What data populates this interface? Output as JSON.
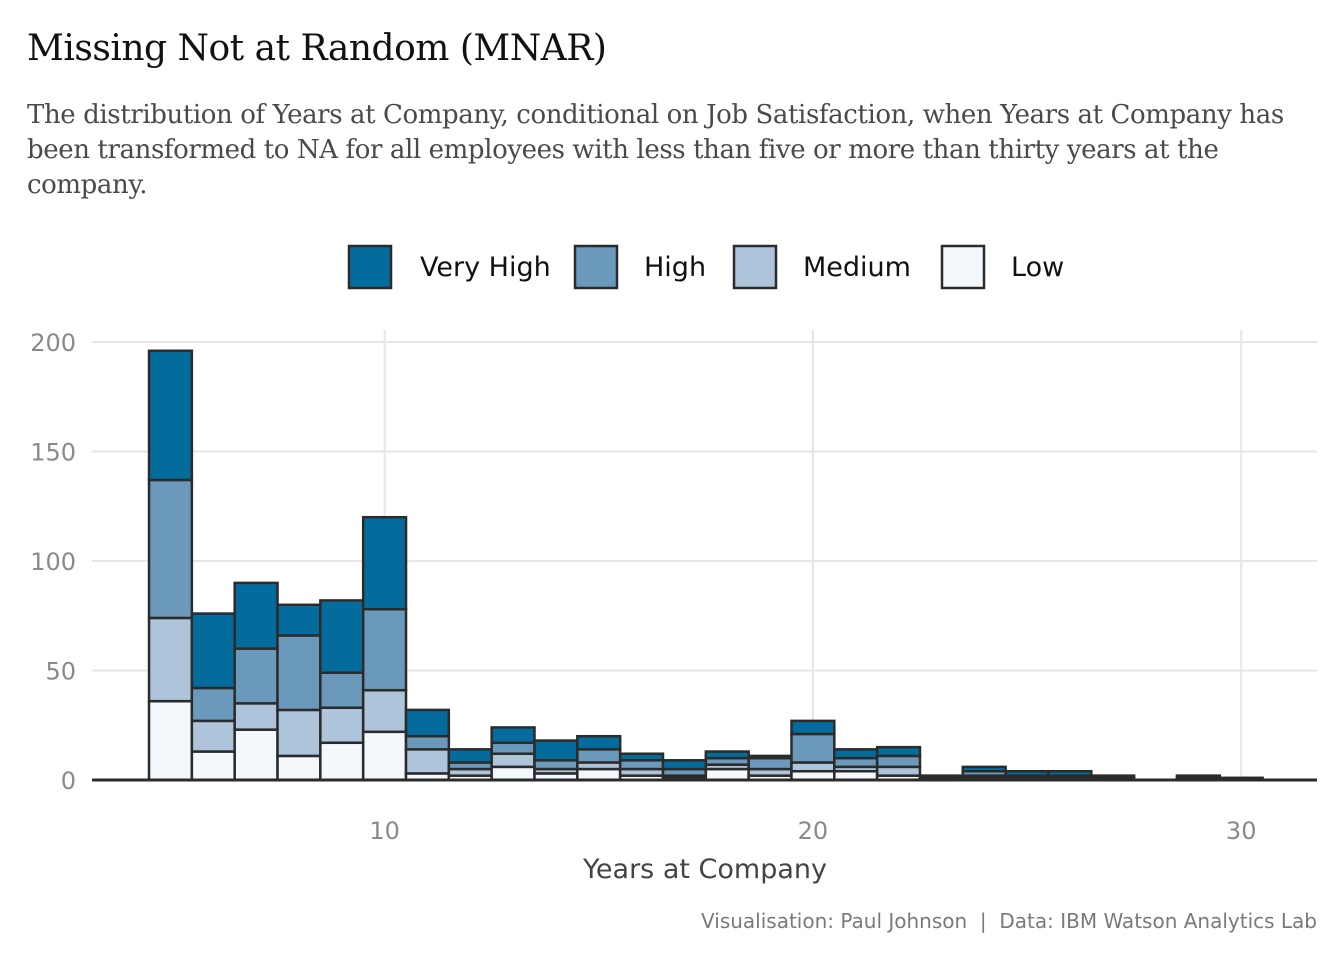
{
  "chart_data": {
    "type": "bar",
    "title": "Missing Not at Random (MNAR)",
    "subtitle": "The distribution of Years at Company, conditional on Job Satisfaction, when Years at Company has been transformed to NA for all employees with less than five or more than thirty years at the company.",
    "xlabel": "Years at Company",
    "ylabel": "",
    "caption": "Visualisation: Paul Johnson  |  Data: IBM Watson Analytics Lab",
    "xlim": [
      3.4,
      32.0
    ],
    "ylim": [
      0,
      200
    ],
    "x_ticks": [
      10,
      20,
      30
    ],
    "y_ticks": [
      0,
      50,
      100,
      150,
      200
    ],
    "bin_width": 1.0,
    "bin_centers": [
      5.0,
      6.0,
      7.0,
      8.0,
      9.0,
      10.0,
      11.0,
      12.0,
      13.0,
      14.0,
      15.0,
      16.0,
      17.0,
      18.0,
      19.0,
      20.0,
      21.0,
      22.0,
      23.0,
      24.0,
      25.0,
      26.0,
      27.0,
      28.0,
      29.0,
      30.0
    ],
    "stack_order": "Very High on top, Low at bottom",
    "grid": true,
    "legend_position": "top",
    "series": [
      {
        "name": "Low",
        "color": "#f3f8fd",
        "values": [
          36,
          13,
          23,
          11,
          17,
          22,
          3,
          2,
          6,
          3,
          5,
          2,
          1,
          5,
          2,
          4,
          4,
          2,
          0,
          1,
          0,
          1,
          0,
          0,
          0,
          0
        ]
      },
      {
        "name": "Medium",
        "color": "#adc4da",
        "values": [
          38,
          14,
          12,
          21,
          16,
          19,
          11,
          3,
          6,
          2,
          3,
          3,
          1,
          2,
          3,
          4,
          2,
          4,
          1,
          1,
          1,
          0,
          0,
          0,
          0,
          0
        ]
      },
      {
        "name": "High",
        "color": "#6a99bb",
        "values": [
          63,
          15,
          25,
          34,
          16,
          37,
          6,
          3,
          5,
          4,
          6,
          4,
          3,
          3,
          5,
          13,
          4,
          5,
          0,
          2,
          1,
          1,
          1,
          0,
          1,
          0
        ]
      },
      {
        "name": "Very High",
        "color": "#046c9c",
        "values": [
          59,
          34,
          30,
          14,
          33,
          42,
          12,
          6,
          7,
          9,
          6,
          3,
          4,
          3,
          1,
          6,
          4,
          4,
          1,
          2,
          2,
          2,
          1,
          0,
          1,
          1
        ]
      }
    ],
    "legend_order": [
      "Very High",
      "High",
      "Medium",
      "Low"
    ]
  }
}
